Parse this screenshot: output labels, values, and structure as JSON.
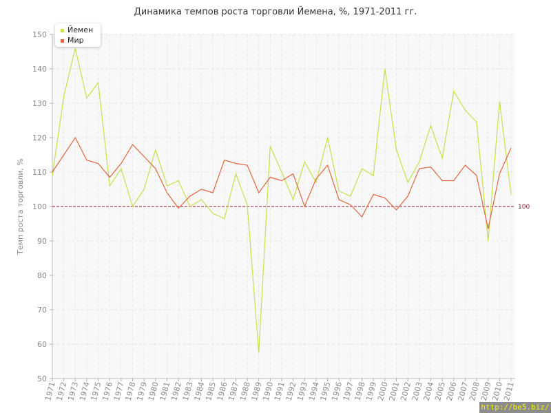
{
  "chart_data": {
    "type": "line",
    "title": "Динамика темпов роста торговли Йемена, %, 1971-2011 гг.",
    "ylabel": "Темп роста торговли, %",
    "xlabel": "",
    "ylim": [
      50,
      150
    ],
    "yticks": [
      50,
      60,
      70,
      80,
      90,
      100,
      110,
      120,
      130,
      140,
      150
    ],
    "x": [
      1971,
      1972,
      1973,
      1974,
      1975,
      1976,
      1977,
      1978,
      1979,
      1980,
      1981,
      1982,
      1983,
      1984,
      1985,
      1986,
      1987,
      1988,
      1989,
      1990,
      1991,
      1992,
      1993,
      1994,
      1995,
      1996,
      1997,
      1998,
      1999,
      2000,
      2001,
      2002,
      2003,
      2004,
      2005,
      2006,
      2007,
      2008,
      2009,
      2010,
      2011
    ],
    "series": [
      {
        "name": "Йемен",
        "color": "#c5e04a",
        "values": [
          109,
          132,
          146,
          131.5,
          136,
          106,
          111,
          100,
          105,
          116.5,
          106,
          107.5,
          100,
          102,
          98,
          96.5,
          109.5,
          100.5,
          57.5,
          117.5,
          110,
          102,
          113,
          107,
          120,
          104.5,
          103,
          111,
          109,
          140,
          116.5,
          107,
          113,
          123.5,
          114,
          133.5,
          128,
          124.5,
          90,
          130.5,
          103.5
        ]
      },
      {
        "name": "Мир",
        "color": "#e0643c",
        "values": [
          110,
          115,
          120,
          113.5,
          112.5,
          108.5,
          112.5,
          118,
          114.5,
          111,
          104,
          99.5,
          103,
          105,
          104,
          113.5,
          112.5,
          112,
          104,
          108.5,
          107.5,
          109.5,
          100,
          108,
          112,
          102,
          100.5,
          97,
          103.5,
          102.5,
          99,
          103,
          111,
          111.5,
          107.5,
          107.5,
          112,
          109,
          93.5,
          109.5,
          117
        ]
      }
    ],
    "reference_line": {
      "value": 100,
      "label": "100",
      "color": "#8b1a2a"
    },
    "grid": true,
    "legend_position": "top-left"
  },
  "watermark": "http://be5.biz/"
}
